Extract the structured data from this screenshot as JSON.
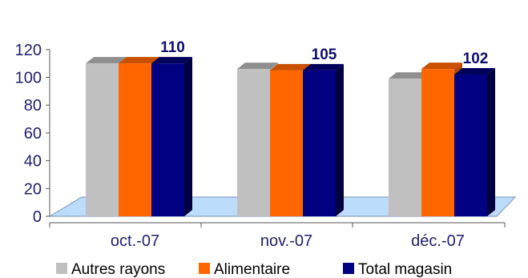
{
  "chart_data": {
    "type": "bar",
    "categories": [
      "oct.-07",
      "nov.-07",
      "déc.-07"
    ],
    "series": [
      {
        "name": "Autres rayons",
        "values": [
          110,
          106,
          99
        ],
        "color": "#c0c0c0",
        "top_color": "#8f8f8f",
        "side_color": "#9a9a9a"
      },
      {
        "name": "Alimentaire",
        "values": [
          110,
          105,
          106
        ],
        "color": "#ff6600",
        "top_color": "#c85000",
        "side_color": "#b84800"
      },
      {
        "name": "Total magasin",
        "values": [
          110,
          105,
          102
        ],
        "color": "#000080",
        "top_color": "#00005a",
        "side_color": "#000040"
      }
    ],
    "data_labels": [
      "110",
      "105",
      "102"
    ],
    "y_ticks": [
      "0",
      "20",
      "40",
      "60",
      "80",
      "100",
      "120"
    ],
    "ylim": [
      0,
      120
    ],
    "grid": false,
    "legend_position": "bottom",
    "floor_color": "#bcdcfb",
    "axis_text_color": "#1f1f6e"
  }
}
